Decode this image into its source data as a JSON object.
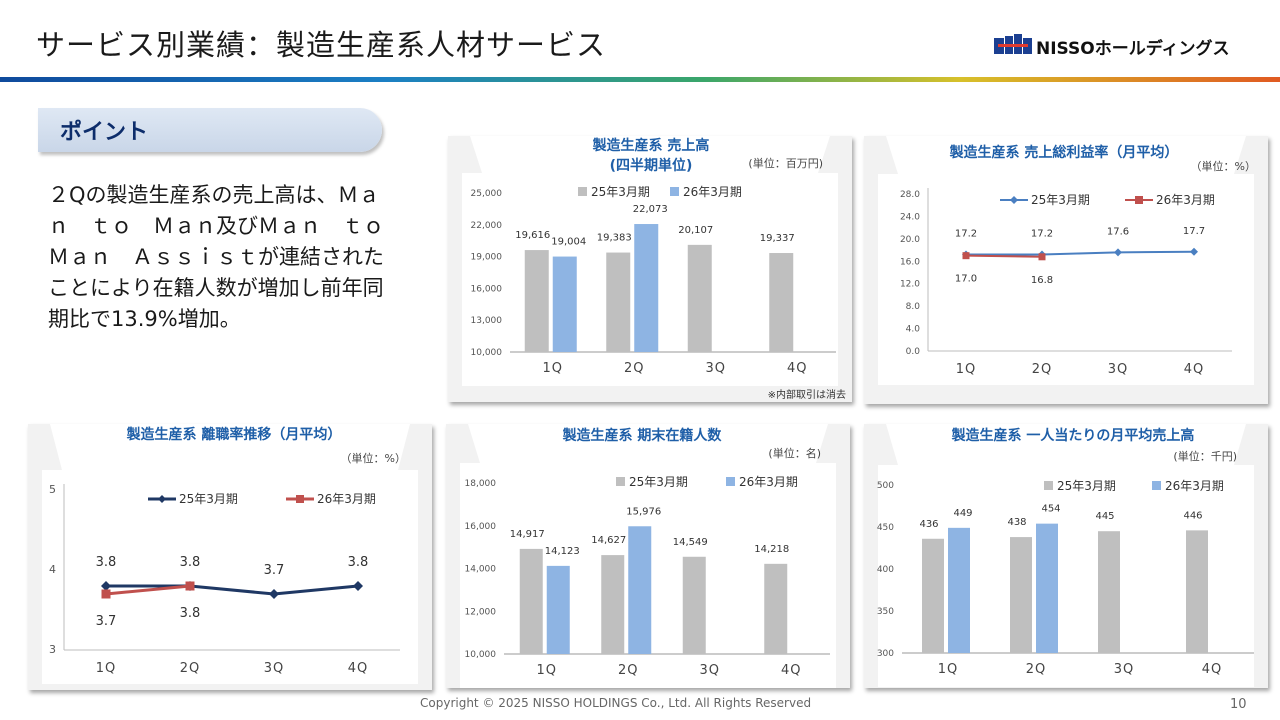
{
  "header": {
    "title": "サービス別業績：製造生産系人材サービス",
    "logo_mark": "NISSO",
    "logo_text": "NISSOホールディングス"
  },
  "point": {
    "tab_label": "ポイント",
    "lines": [
      "２Qの製造生産系の売上高は、Ｍａ",
      "ｎ　ｔｏ　Ｍａｎ及びＭａｎ　ｔｏ",
      "Ｍａｎ　Ａｓｓｉｓｔが連結された",
      "ことにより在籍人数が増加し前年同",
      "期比で13.9%増加。"
    ]
  },
  "colors": {
    "s25_bar": "#bfbfbf",
    "s26_bar": "#8eb4e3",
    "s25_line": "#4a7fc1",
    "s26_line": "#c0504d",
    "s25_line_alt": "#1f3864",
    "title_blue": "#1f5fa8"
  },
  "chart_data": [
    {
      "id": "sales",
      "type": "bar",
      "title": "製造生産系 売上高",
      "subtitle": "(四半期単位)",
      "unit": "(単位：百万円)",
      "note": "※内部取引は消去",
      "categories": [
        "1Q",
        "2Q",
        "3Q",
        "4Q"
      ],
      "series": [
        {
          "name": "25年3月期",
          "values": [
            19616,
            19383,
            20107,
            19337
          ],
          "labels": [
            "19,616",
            "19,383",
            "20,107",
            "19,337"
          ]
        },
        {
          "name": "26年3月期",
          "values": [
            19004,
            22073,
            null,
            null
          ],
          "labels": [
            "19,004",
            "22,073",
            "",
            ""
          ]
        }
      ],
      "ylim": [
        10000,
        25000
      ],
      "yticks": [
        "10,000",
        "13,000",
        "16,000",
        "19,000",
        "22,000",
        "25,000"
      ]
    },
    {
      "id": "gross-margin",
      "type": "line",
      "title": "製造生産系 売上総利益率（月平均）",
      "unit": "（単位：%）",
      "categories": [
        "1Q",
        "2Q",
        "3Q",
        "4Q"
      ],
      "series": [
        {
          "name": "25年3月期",
          "values": [
            17.2,
            17.2,
            17.6,
            17.7
          ],
          "labels": [
            "17.2",
            "17.2",
            "17.6",
            "17.7"
          ]
        },
        {
          "name": "26年3月期",
          "values": [
            17.0,
            16.8,
            null,
            null
          ],
          "labels": [
            "17.0",
            "16.8",
            "",
            ""
          ]
        }
      ],
      "ylim": [
        0,
        28
      ],
      "yticks": [
        "0.0",
        "4.0",
        "8.0",
        "12.0",
        "16.0",
        "20.0",
        "24.0",
        "28.0"
      ]
    },
    {
      "id": "turnover",
      "type": "line",
      "title": "製造生産系 離職率推移（月平均）",
      "unit": "（単位：%）",
      "categories": [
        "1Q",
        "2Q",
        "3Q",
        "4Q"
      ],
      "series": [
        {
          "name": "25年3月期",
          "values": [
            3.8,
            3.8,
            3.7,
            3.8
          ],
          "labels": [
            "3.8",
            "3.8",
            "3.7",
            "3.8"
          ]
        },
        {
          "name": "26年3月期",
          "values": [
            3.7,
            3.8,
            null,
            null
          ],
          "labels": [
            "3.7",
            "3.8",
            "",
            ""
          ]
        }
      ],
      "ylim": [
        3,
        5
      ],
      "yticks": [
        "3",
        "4",
        "5"
      ]
    },
    {
      "id": "headcount",
      "type": "bar",
      "title": "製造生産系 期末在籍人数",
      "unit": "(単位：名)",
      "categories": [
        "1Q",
        "2Q",
        "3Q",
        "4Q"
      ],
      "series": [
        {
          "name": "25年3月期",
          "values": [
            14917,
            14627,
            14549,
            14218
          ],
          "labels": [
            "14,917",
            "14,627",
            "14,549",
            "14,218"
          ]
        },
        {
          "name": "26年3月期",
          "values": [
            14123,
            15976,
            null,
            null
          ],
          "labels": [
            "14,123",
            "15,976",
            "",
            ""
          ]
        }
      ],
      "ylim": [
        10000,
        18000
      ],
      "yticks": [
        "10,000",
        "12,000",
        "14,000",
        "16,000",
        "18,000"
      ]
    },
    {
      "id": "sales-per-person",
      "type": "bar",
      "title": "製造生産系 一人当たりの月平均売上高",
      "unit": "(単位：千円)",
      "categories": [
        "1Q",
        "2Q",
        "3Q",
        "4Q"
      ],
      "series": [
        {
          "name": "25年3月期",
          "values": [
            436,
            438,
            445,
            446
          ],
          "labels": [
            "436",
            "438",
            "445",
            "446"
          ]
        },
        {
          "name": "26年3月期",
          "values": [
            449,
            454,
            null,
            null
          ],
          "labels": [
            "449",
            "454",
            "",
            ""
          ]
        }
      ],
      "ylim": [
        300,
        500
      ],
      "yticks": [
        "300",
        "350",
        "400",
        "450",
        "500"
      ]
    }
  ],
  "footer": {
    "copyright": "Copyright © 2025 NISSO HOLDINGS Co., Ltd. All Rights Reserved",
    "page_number": "10"
  }
}
